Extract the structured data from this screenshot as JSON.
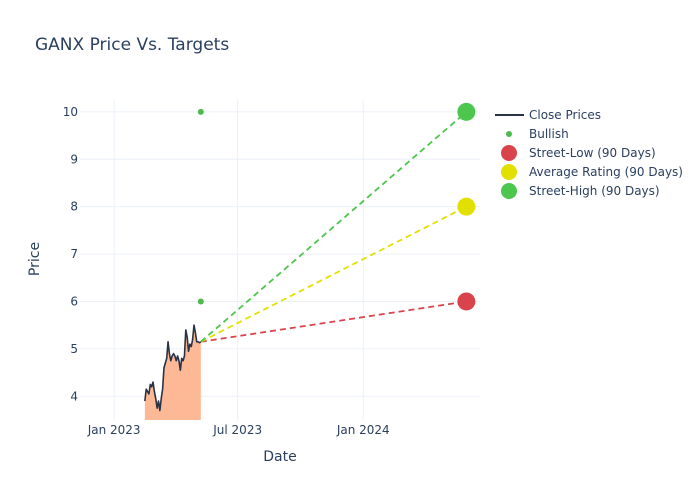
{
  "chart_data": {
    "type": "line",
    "title": "GANX Price Vs. Targets",
    "xlabel": "Date",
    "ylabel": "Price",
    "x_range": [
      "2022-11-12",
      "2024-06-20"
    ],
    "ylim": [
      3.5,
      10.25
    ],
    "x_ticks": [
      {
        "date": "2023-01-01",
        "label": "Jan 2023"
      },
      {
        "date": "2023-07-01",
        "label": "Jul 2023"
      },
      {
        "date": "2024-01-01",
        "label": "Jan 2024"
      }
    ],
    "y_ticks": [
      {
        "value": 4,
        "label": "4"
      },
      {
        "value": 5,
        "label": "5"
      },
      {
        "value": 6,
        "label": "6"
      },
      {
        "value": 7,
        "label": "7"
      },
      {
        "value": 8,
        "label": "8"
      },
      {
        "value": 9,
        "label": "9"
      },
      {
        "value": 10,
        "label": "10"
      }
    ],
    "grid": true,
    "legend_position": "top-right",
    "close_prices": {
      "name": "Close Prices",
      "color": "#2a3245",
      "fill_color": "#fdb896",
      "points": [
        [
          "2023-02-15",
          3.9
        ],
        [
          "2023-02-17",
          4.15
        ],
        [
          "2023-02-19",
          4.1
        ],
        [
          "2023-02-21",
          4.05
        ],
        [
          "2023-02-23",
          4.25
        ],
        [
          "2023-02-25",
          4.2
        ],
        [
          "2023-02-27",
          4.3
        ],
        [
          "2023-03-01",
          4.1
        ],
        [
          "2023-03-03",
          3.95
        ],
        [
          "2023-03-05",
          3.75
        ],
        [
          "2023-03-07",
          3.9
        ],
        [
          "2023-03-09",
          3.7
        ],
        [
          "2023-03-11",
          3.95
        ],
        [
          "2023-03-13",
          4.15
        ],
        [
          "2023-03-15",
          4.6
        ],
        [
          "2023-03-17",
          4.7
        ],
        [
          "2023-03-19",
          4.8
        ],
        [
          "2023-03-21",
          5.15
        ],
        [
          "2023-03-23",
          4.9
        ],
        [
          "2023-03-25",
          4.75
        ],
        [
          "2023-03-27",
          4.85
        ],
        [
          "2023-03-29",
          4.9
        ],
        [
          "2023-03-31",
          4.85
        ],
        [
          "2023-04-02",
          4.75
        ],
        [
          "2023-04-04",
          4.85
        ],
        [
          "2023-04-06",
          4.75
        ],
        [
          "2023-04-08",
          4.55
        ],
        [
          "2023-04-10",
          4.8
        ],
        [
          "2023-04-12",
          4.75
        ],
        [
          "2023-04-14",
          4.85
        ],
        [
          "2023-04-16",
          5.4
        ],
        [
          "2023-04-18",
          5.25
        ],
        [
          "2023-04-20",
          4.95
        ],
        [
          "2023-04-22",
          5.1
        ],
        [
          "2023-04-24",
          5.05
        ],
        [
          "2023-04-26",
          5.2
        ],
        [
          "2023-04-28",
          5.5
        ],
        [
          "2023-04-30",
          5.35
        ],
        [
          "2023-05-02",
          5.15
        ],
        [
          "2023-05-04",
          5.15
        ],
        [
          "2023-05-06",
          5.13
        ],
        [
          "2023-05-08",
          5.15
        ]
      ]
    },
    "bullish": {
      "name": "Bullish",
      "color": "#4cbb4c",
      "points": [
        [
          "2023-05-08",
          10
        ],
        [
          "2023-05-08",
          6
        ]
      ]
    },
    "targets": [
      {
        "name": "Street-Low (90 Days)",
        "color": "#d9444c",
        "start": [
          "2023-05-08",
          5.15
        ],
        "end": [
          "2024-05-31",
          6
        ]
      },
      {
        "name": "Average Rating (90 Days)",
        "color": "#e2e000",
        "start": [
          "2023-05-08",
          5.15
        ],
        "end": [
          "2024-05-31",
          8
        ]
      },
      {
        "name": "Street-High (90 Days)",
        "color": "#4cc64c",
        "start": [
          "2023-05-08",
          5.15
        ],
        "end": [
          "2024-05-31",
          10
        ]
      }
    ]
  }
}
